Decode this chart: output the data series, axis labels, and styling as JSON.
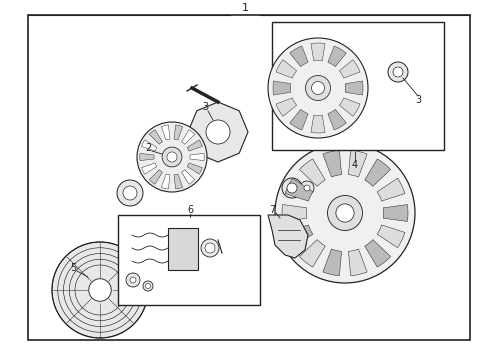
{
  "bg_color": "#ffffff",
  "line_color": "#222222",
  "text_color": "#000000",
  "fig_width": 4.9,
  "fig_height": 3.6,
  "dpi": 100,
  "label_fontsize": 7,
  "title_fontsize": 8
}
